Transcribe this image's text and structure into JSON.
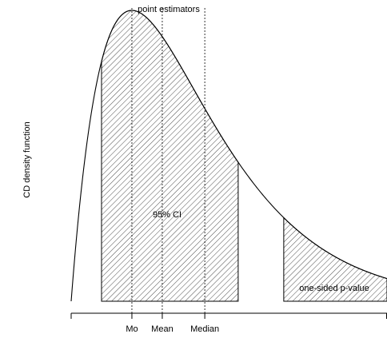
{
  "chart_data": {
    "type": "area",
    "curve": "right-skewed CD density",
    "ylabel": "CD density function",
    "annotations": {
      "point_estimators": "point estimators",
      "ci": "95% CI",
      "pvalue": "one-sided p-value"
    },
    "x_ticks": [
      "Mo",
      "Mean",
      "Median"
    ],
    "x_tick_values": [
      1.0,
      1.5,
      2.2
    ],
    "xlim": [
      0,
      5.2
    ],
    "ci_interval": [
      0.5,
      2.75
    ],
    "pvalue_interval": [
      3.5,
      5.2
    ],
    "density": {
      "shape": 2,
      "scale": 1.0
    }
  }
}
